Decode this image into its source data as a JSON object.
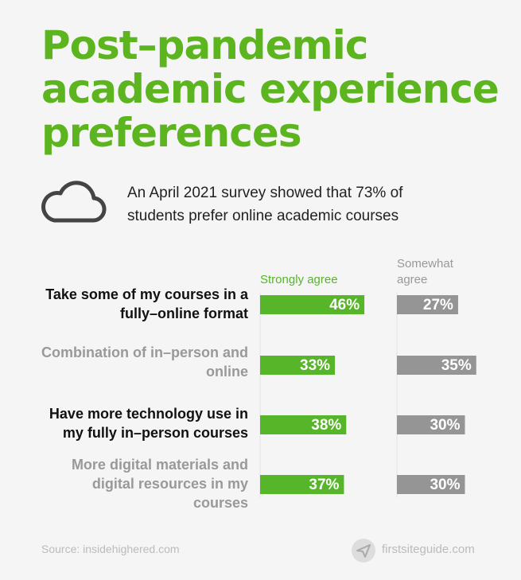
{
  "chart_data": {
    "type": "bar",
    "title": "Post–pandemic academic experience preferences",
    "subtitle": "An April 2021 survey showed that 73% of students prefer online academic courses",
    "categories": [
      "Take some of my courses in a fully–online format",
      "Combination of in–person and online",
      "Have more technology use in my fully in–person courses",
      "More digital materials and digital resources in my courses"
    ],
    "series": [
      {
        "name": "Strongly agree",
        "color": "#56b528",
        "values": [
          46,
          33,
          38,
          37
        ],
        "value_labels": [
          "46%",
          "33%",
          "38%",
          "37%"
        ]
      },
      {
        "name": "Somewhat agree",
        "color": "#959595",
        "values": [
          27,
          35,
          30,
          30
        ],
        "value_labels": [
          "27%",
          "35%",
          "30%",
          "30%"
        ]
      }
    ],
    "source": "Source: insidehighered.com",
    "brand": "firstsiteguide.com"
  }
}
